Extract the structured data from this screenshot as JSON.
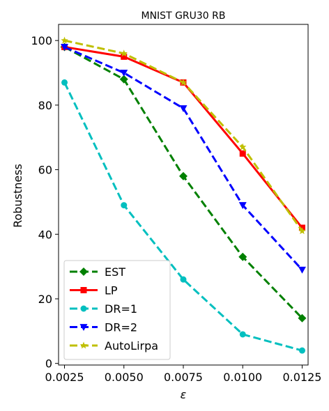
{
  "chart_data": {
    "type": "line",
    "title": "MNIST GRU30 RB",
    "xlabel": "ε",
    "ylabel": "Robustness",
    "x": [
      0.0025,
      0.005,
      0.0075,
      0.01,
      0.0125
    ],
    "x_tick_labels": [
      "0.0025",
      "0.0050",
      "0.0075",
      "0.0100",
      "0.0125"
    ],
    "y_tick_labels": [
      "0",
      "20",
      "40",
      "60",
      "80",
      "100"
    ],
    "y_ticks": [
      0,
      20,
      40,
      60,
      80,
      100
    ],
    "xlim": [
      0.00225,
      0.01275
    ],
    "ylim": [
      -0.5,
      105
    ],
    "grid": false,
    "legend_position": "lower-left",
    "series": [
      {
        "name": "EST",
        "values": [
          98,
          88,
          58,
          33,
          14
        ],
        "color": "#008000",
        "dash": "dashed",
        "marker": "diamond"
      },
      {
        "name": "LP",
        "values": [
          98,
          95,
          87,
          65,
          42
        ],
        "color": "#ff0000",
        "dash": "solid",
        "marker": "square"
      },
      {
        "name": "DR=1",
        "values": [
          87,
          49,
          26,
          9,
          4
        ],
        "color": "#00bfbf",
        "dash": "dashed",
        "marker": "circle"
      },
      {
        "name": "DR=2",
        "values": [
          98,
          90,
          79,
          49,
          29
        ],
        "color": "#0000ff",
        "dash": "dashed",
        "marker": "triangle-down"
      },
      {
        "name": "AutoLirpa",
        "values": [
          100,
          96,
          87,
          67,
          41
        ],
        "color": "#bfbf00",
        "dash": "dashed",
        "marker": "star"
      }
    ]
  }
}
